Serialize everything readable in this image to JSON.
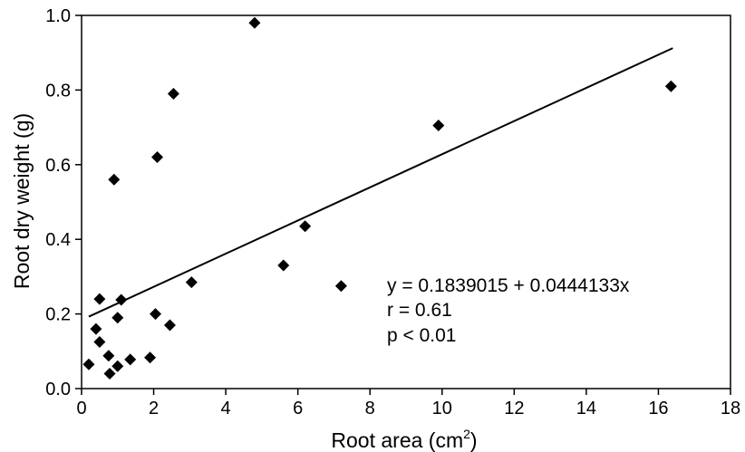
{
  "chart_data": {
    "type": "scatter",
    "xlabel": "Root area (cm",
    "xlabel_sup": "2",
    "xlabel_close": ")",
    "ylabel": "Root dry weight (g)",
    "xlim": [
      0,
      18
    ],
    "ylim": [
      0,
      1.0
    ],
    "xticks": [
      0,
      2,
      4,
      6,
      8,
      10,
      12,
      14,
      16,
      18
    ],
    "xtick_labels": [
      "0",
      "2",
      "4",
      "6",
      "8",
      "10",
      "12",
      "14",
      "16",
      "18"
    ],
    "yticks": [
      0,
      0.2,
      0.4,
      0.6,
      0.8,
      1.0
    ],
    "ytick_labels": [
      "0.0",
      "0.2",
      "0.4",
      "0.6",
      "0.8",
      "1.0"
    ],
    "grid": false,
    "marker": "diamond",
    "points": [
      {
        "x": 0.2,
        "y": 0.065
      },
      {
        "x": 0.4,
        "y": 0.16
      },
      {
        "x": 0.5,
        "y": 0.125
      },
      {
        "x": 0.5,
        "y": 0.24
      },
      {
        "x": 0.75,
        "y": 0.088
      },
      {
        "x": 0.78,
        "y": 0.04
      },
      {
        "x": 0.9,
        "y": 0.56
      },
      {
        "x": 1.0,
        "y": 0.06
      },
      {
        "x": 1.0,
        "y": 0.19
      },
      {
        "x": 1.1,
        "y": 0.238
      },
      {
        "x": 1.35,
        "y": 0.078
      },
      {
        "x": 1.9,
        "y": 0.083
      },
      {
        "x": 2.05,
        "y": 0.2
      },
      {
        "x": 2.1,
        "y": 0.62
      },
      {
        "x": 2.45,
        "y": 0.17
      },
      {
        "x": 2.55,
        "y": 0.79
      },
      {
        "x": 3.05,
        "y": 0.285
      },
      {
        "x": 4.8,
        "y": 0.98
      },
      {
        "x": 5.6,
        "y": 0.33
      },
      {
        "x": 6.2,
        "y": 0.435
      },
      {
        "x": 7.2,
        "y": 0.275
      },
      {
        "x": 9.9,
        "y": 0.705
      },
      {
        "x": 16.35,
        "y": 0.81
      }
    ],
    "regression": {
      "intercept": 0.1839015,
      "slope": 0.0444133,
      "x_range": [
        0.2,
        16.4
      ]
    },
    "annotations": [
      "y = 0.1839015 + 0.0444133x",
      "r = 0.61",
      "p < 0.01"
    ]
  }
}
